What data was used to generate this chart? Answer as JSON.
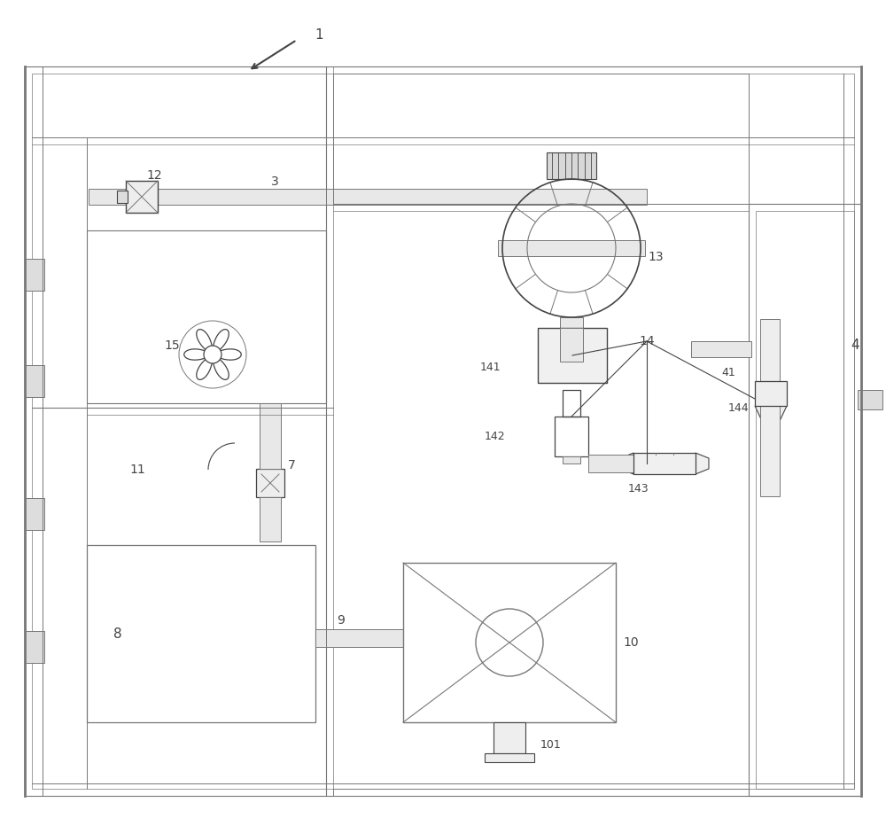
{
  "bg_color": "#ffffff",
  "lc": "#aaaaaa",
  "dc": "#444444",
  "mc": "#777777",
  "fig_width": 10.0,
  "fig_height": 9.23
}
